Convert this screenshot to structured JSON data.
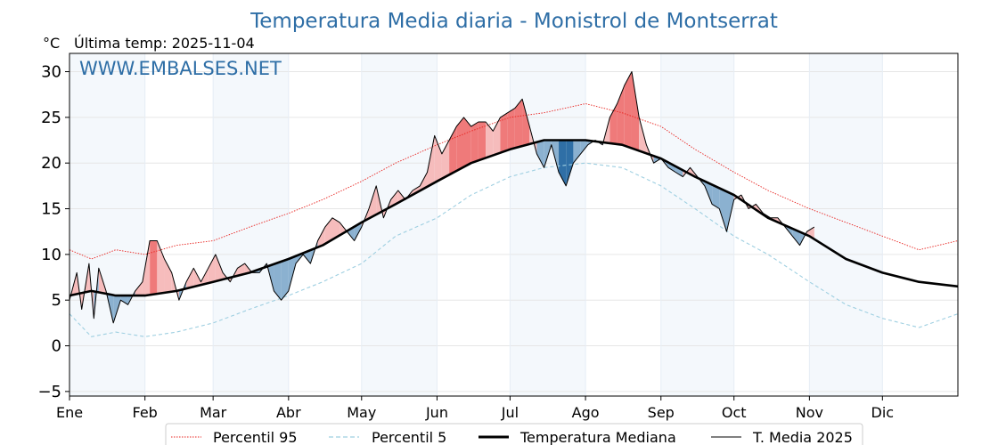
{
  "chart_data": {
    "type": "line",
    "title": "Temperatura Media diaria - Monistrol de Montserrat",
    "unit_label": "°C",
    "subtitle": "Última temp: 2025-11-04",
    "watermark": "WWW.EMBALSES.NET",
    "ylim": [
      -5.5,
      32
    ],
    "yticks": [
      -5,
      0,
      5,
      10,
      15,
      20,
      25,
      30
    ],
    "ytick_labels": [
      "−5",
      "0",
      "5",
      "10",
      "15",
      "20",
      "25",
      "30"
    ],
    "xlim": [
      1,
      366
    ],
    "months": [
      {
        "label": "Ene",
        "day": 1
      },
      {
        "label": "Feb",
        "day": 32
      },
      {
        "label": "Mar",
        "day": 60
      },
      {
        "label": "Abr",
        "day": 91
      },
      {
        "label": "May",
        "day": 121
      },
      {
        "label": "Jun",
        "day": 152
      },
      {
        "label": "Jul",
        "day": 182
      },
      {
        "label": "Ago",
        "day": 213
      },
      {
        "label": "Sep",
        "day": 244
      },
      {
        "label": "Oct",
        "day": 274
      },
      {
        "label": "Nov",
        "day": 305
      },
      {
        "label": "Dic",
        "day": 335
      }
    ],
    "grid": true,
    "legend_position": "bottom",
    "series": [
      {
        "key": "p95",
        "name": "Percentil 95",
        "color": "#e8231f",
        "style": "dotted",
        "points": [
          [
            1,
            10.5
          ],
          [
            10,
            9.5
          ],
          [
            20,
            10.5
          ],
          [
            32,
            10
          ],
          [
            45,
            11
          ],
          [
            60,
            11.5
          ],
          [
            75,
            13
          ],
          [
            91,
            14.5
          ],
          [
            105,
            16
          ],
          [
            121,
            18
          ],
          [
            135,
            20
          ],
          [
            152,
            22
          ],
          [
            166,
            23.5
          ],
          [
            182,
            25
          ],
          [
            196,
            25.5
          ],
          [
            213,
            26.5
          ],
          [
            228,
            25.5
          ],
          [
            244,
            24
          ],
          [
            258,
            21.5
          ],
          [
            274,
            19
          ],
          [
            288,
            17
          ],
          [
            305,
            15
          ],
          [
            320,
            13.5
          ],
          [
            335,
            12
          ],
          [
            350,
            10.5
          ],
          [
            366,
            11.5
          ]
        ]
      },
      {
        "key": "p5",
        "name": "Percentil 5",
        "color": "#9ecfe1",
        "style": "dashed",
        "points": [
          [
            1,
            3.5
          ],
          [
            10,
            1
          ],
          [
            20,
            1.5
          ],
          [
            32,
            1
          ],
          [
            45,
            1.5
          ],
          [
            60,
            2.5
          ],
          [
            75,
            4
          ],
          [
            91,
            5.5
          ],
          [
            105,
            7
          ],
          [
            121,
            9
          ],
          [
            135,
            12
          ],
          [
            152,
            14
          ],
          [
            166,
            16.5
          ],
          [
            182,
            18.5
          ],
          [
            196,
            19.5
          ],
          [
            213,
            20
          ],
          [
            228,
            19.5
          ],
          [
            244,
            17.5
          ],
          [
            258,
            15
          ],
          [
            274,
            12
          ],
          [
            288,
            10
          ],
          [
            305,
            7
          ],
          [
            320,
            4.5
          ],
          [
            335,
            3
          ],
          [
            350,
            2
          ],
          [
            366,
            3.5
          ]
        ]
      },
      {
        "key": "median",
        "name": "Temperatura Mediana",
        "color": "#000000",
        "style": "thick",
        "points": [
          [
            1,
            5.5
          ],
          [
            10,
            6
          ],
          [
            20,
            5.5
          ],
          [
            32,
            5.5
          ],
          [
            45,
            6
          ],
          [
            60,
            7
          ],
          [
            75,
            8
          ],
          [
            91,
            9.5
          ],
          [
            105,
            11
          ],
          [
            121,
            13.5
          ],
          [
            135,
            15.5
          ],
          [
            152,
            18
          ],
          [
            166,
            20
          ],
          [
            182,
            21.5
          ],
          [
            196,
            22.5
          ],
          [
            213,
            22.5
          ],
          [
            228,
            22
          ],
          [
            244,
            20.5
          ],
          [
            258,
            18.5
          ],
          [
            274,
            16.5
          ],
          [
            288,
            14
          ],
          [
            305,
            12
          ],
          [
            320,
            9.5
          ],
          [
            335,
            8
          ],
          [
            350,
            7
          ],
          [
            366,
            6.5
          ]
        ]
      },
      {
        "key": "actual",
        "name": "T. Media 2025",
        "color": "#000000",
        "style": "thin",
        "points": [
          [
            1,
            5
          ],
          [
            4,
            8
          ],
          [
            6,
            4
          ],
          [
            9,
            9
          ],
          [
            11,
            3
          ],
          [
            13,
            8.5
          ],
          [
            16,
            6
          ],
          [
            19,
            2.5
          ],
          [
            22,
            5
          ],
          [
            25,
            4.5
          ],
          [
            28,
            6
          ],
          [
            31,
            7
          ],
          [
            34,
            11.5
          ],
          [
            37,
            11.5
          ],
          [
            40,
            9.5
          ],
          [
            43,
            8
          ],
          [
            46,
            5
          ],
          [
            49,
            7
          ],
          [
            52,
            8.5
          ],
          [
            55,
            7
          ],
          [
            58,
            8.5
          ],
          [
            61,
            10
          ],
          [
            64,
            8
          ],
          [
            67,
            7
          ],
          [
            70,
            8.5
          ],
          [
            73,
            9
          ],
          [
            76,
            8
          ],
          [
            79,
            8
          ],
          [
            82,
            9
          ],
          [
            85,
            6
          ],
          [
            88,
            5
          ],
          [
            91,
            6
          ],
          [
            94,
            9
          ],
          [
            97,
            10
          ],
          [
            100,
            9
          ],
          [
            103,
            11.5
          ],
          [
            106,
            13
          ],
          [
            109,
            14
          ],
          [
            112,
            13.5
          ],
          [
            115,
            12.5
          ],
          [
            118,
            11.5
          ],
          [
            121,
            13
          ],
          [
            124,
            15
          ],
          [
            127,
            17.5
          ],
          [
            130,
            14
          ],
          [
            133,
            16
          ],
          [
            136,
            17
          ],
          [
            139,
            16
          ],
          [
            142,
            17
          ],
          [
            145,
            17.5
          ],
          [
            148,
            19
          ],
          [
            151,
            23
          ],
          [
            154,
            21
          ],
          [
            157,
            22.5
          ],
          [
            160,
            24
          ],
          [
            163,
            25
          ],
          [
            166,
            24
          ],
          [
            169,
            24.5
          ],
          [
            172,
            24.5
          ],
          [
            175,
            23.5
          ],
          [
            178,
            25
          ],
          [
            181,
            25.5
          ],
          [
            184,
            26
          ],
          [
            187,
            27
          ],
          [
            190,
            24
          ],
          [
            193,
            21
          ],
          [
            196,
            19.5
          ],
          [
            199,
            22
          ],
          [
            202,
            19
          ],
          [
            205,
            17.5
          ],
          [
            208,
            20
          ],
          [
            211,
            21
          ],
          [
            214,
            22
          ],
          [
            217,
            22.5
          ],
          [
            220,
            22
          ],
          [
            223,
            25
          ],
          [
            226,
            26.5
          ],
          [
            229,
            28.5
          ],
          [
            232,
            30
          ],
          [
            235,
            25
          ],
          [
            238,
            22
          ],
          [
            241,
            20
          ],
          [
            244,
            20.5
          ],
          [
            247,
            19.5
          ],
          [
            250,
            19
          ],
          [
            253,
            18.5
          ],
          [
            256,
            19.5
          ],
          [
            259,
            18.5
          ],
          [
            262,
            17.5
          ],
          [
            265,
            15.5
          ],
          [
            268,
            15
          ],
          [
            271,
            12.5
          ],
          [
            274,
            16
          ],
          [
            277,
            16.5
          ],
          [
            280,
            15
          ],
          [
            283,
            15.5
          ],
          [
            286,
            14.5
          ],
          [
            289,
            14
          ],
          [
            292,
            14
          ],
          [
            295,
            13
          ],
          [
            298,
            12
          ],
          [
            301,
            11
          ],
          [
            304,
            12.5
          ],
          [
            307,
            13
          ]
        ]
      }
    ]
  }
}
